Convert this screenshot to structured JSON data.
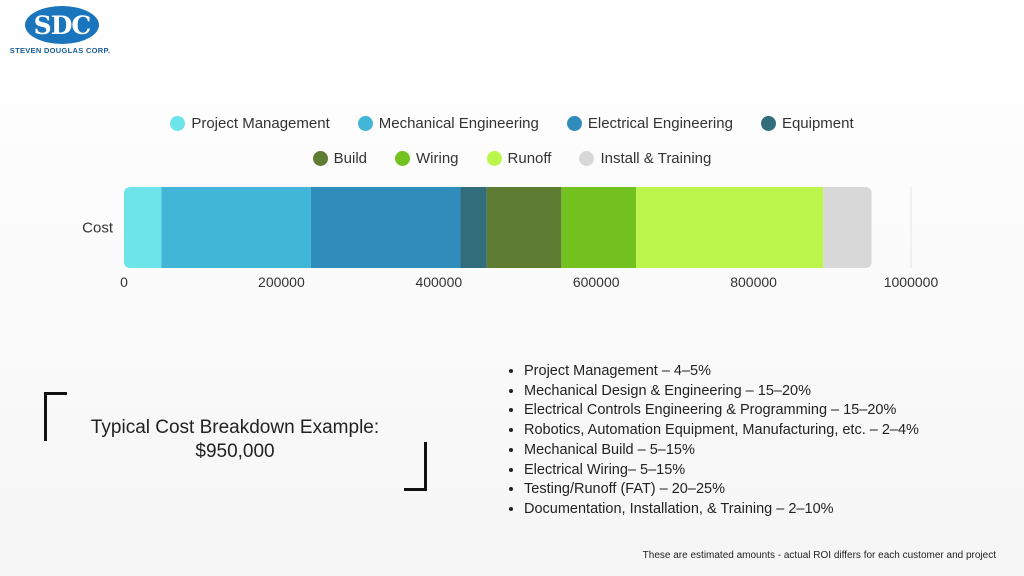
{
  "logo": {
    "mark": "SDC",
    "company": "STEVEN DOUGLAS CORP."
  },
  "chart_data": {
    "type": "bar",
    "orientation": "horizontal",
    "stacked": true,
    "categories": [
      "Cost"
    ],
    "series": [
      {
        "name": "Project Management",
        "values": [
          47500
        ],
        "color": "#6de3ea"
      },
      {
        "name": "Mechanical Engineering",
        "values": [
          190000
        ],
        "color": "#42b6d6"
      },
      {
        "name": "Electrical Engineering",
        "values": [
          190000
        ],
        "color": "#2f8cbb"
      },
      {
        "name": "Equipment",
        "values": [
          33250
        ],
        "color": "#316d7b"
      },
      {
        "name": "Build",
        "values": [
          95000
        ],
        "color": "#5f7c33"
      },
      {
        "name": "Wiring",
        "values": [
          95000
        ],
        "color": "#74c21f"
      },
      {
        "name": "Runoff",
        "values": [
          237500
        ],
        "color": "#bcf64c"
      },
      {
        "name": "Install & Training",
        "values": [
          61750
        ],
        "color": "#d8d8d8"
      }
    ],
    "xlim": [
      0,
      1000000
    ],
    "xticks": [
      "0",
      "200000",
      "400000",
      "600000",
      "800000",
      "1000000"
    ],
    "legend_position": "top"
  },
  "summary": {
    "title": "Typical Cost Breakdown Example:",
    "amount": "$950,000"
  },
  "bullets": [
    "Project Management – 4–5%",
    "Mechanical Design & Engineering – 15–20%",
    "Electrical Controls Engineering & Programming – 15–20%",
    "Robotics, Automation Equipment, Manufacturing, etc. – 2–4%",
    "Mechanical Build – 5–15%",
    "Electrical Wiring– 5–15%",
    "Testing/Runoff (FAT) – 20–25%",
    "Documentation, Installation, & Training – 2–10%"
  ],
  "footnote": "These are estimated amounts - actual ROI differs for each customer and project"
}
